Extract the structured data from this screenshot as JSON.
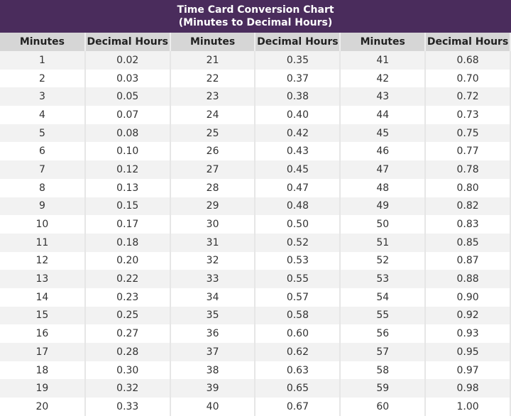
{
  "title_line1": "Time Card Conversion Chart",
  "title_line2": "(Minutes to Decimal Hours)",
  "headers": [
    "Minutes",
    "Decimal Hours",
    "Minutes",
    "Decimal Hours",
    "Minutes",
    "Decimal Hours"
  ],
  "colors": {
    "title_bg": "#4a2c5c",
    "header_bg": "#d6d6d6",
    "stripe": "#f2f2f2"
  },
  "rows": [
    [
      "1",
      "0.02",
      "21",
      "0.35",
      "41",
      "0.68"
    ],
    [
      "2",
      "0.03",
      "22",
      "0.37",
      "42",
      "0.70"
    ],
    [
      "3",
      "0.05",
      "23",
      "0.38",
      "43",
      "0.72"
    ],
    [
      "4",
      "0.07",
      "24",
      "0.40",
      "44",
      "0.73"
    ],
    [
      "5",
      "0.08",
      "25",
      "0.42",
      "45",
      "0.75"
    ],
    [
      "6",
      "0.10",
      "26",
      "0.43",
      "46",
      "0.77"
    ],
    [
      "7",
      "0.12",
      "27",
      "0.45",
      "47",
      "0.78"
    ],
    [
      "8",
      "0.13",
      "28",
      "0.47",
      "48",
      "0.80"
    ],
    [
      "9",
      "0.15",
      "29",
      "0.48",
      "49",
      "0.82"
    ],
    [
      "10",
      "0.17",
      "30",
      "0.50",
      "50",
      "0.83"
    ],
    [
      "11",
      "0.18",
      "31",
      "0.52",
      "51",
      "0.85"
    ],
    [
      "12",
      "0.20",
      "32",
      "0.53",
      "52",
      "0.87"
    ],
    [
      "13",
      "0.22",
      "33",
      "0.55",
      "53",
      "0.88"
    ],
    [
      "14",
      "0.23",
      "34",
      "0.57",
      "54",
      "0.90"
    ],
    [
      "15",
      "0.25",
      "35",
      "0.58",
      "55",
      "0.92"
    ],
    [
      "16",
      "0.27",
      "36",
      "0.60",
      "56",
      "0.93"
    ],
    [
      "17",
      "0.28",
      "37",
      "0.62",
      "57",
      "0.95"
    ],
    [
      "18",
      "0.30",
      "38",
      "0.63",
      "58",
      "0.97"
    ],
    [
      "19",
      "0.32",
      "39",
      "0.65",
      "59",
      "0.98"
    ],
    [
      "20",
      "0.33",
      "40",
      "0.67",
      "60",
      "1.00"
    ]
  ]
}
